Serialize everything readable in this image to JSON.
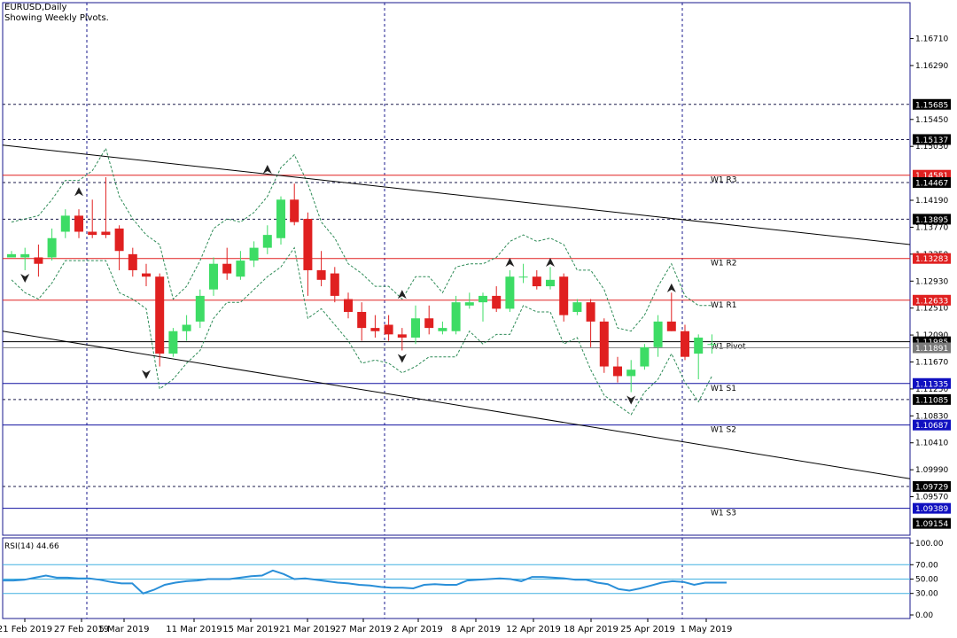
{
  "header": {
    "symbol": "EURUSD,Daily",
    "subtitle": "Showing Weekly Pivots."
  },
  "rsi_label": "RSI(14) 44.66",
  "colors": {
    "bull": "#3ddc65",
    "bear": "#e02020",
    "frame": "#1a1a8c",
    "pivot_red": "#e02020",
    "pivot_blue": "#1010a0",
    "rsi_line": "#2a8fd8",
    "rsi_level": "#40b0e0",
    "envelope": "#2e8b57"
  },
  "chart_data": [
    {
      "type": "candlestick",
      "title": "EURUSD,Daily",
      "ylim": [
        1.0897,
        1.1727
      ],
      "y_ticks": [
        "1.16710",
        "1.16290",
        "1.15450",
        "1.15030",
        "1.14190",
        "1.13770",
        "1.13350",
        "1.12930",
        "1.12510",
        "1.12090",
        "1.11670",
        "1.11250",
        "1.10830",
        "1.10410",
        "1.09990",
        "1.09570"
      ],
      "x_tick_labels": [
        "21 Feb 2019",
        "27 Feb 2019",
        "5 Mar 2019",
        "11 Mar 2019",
        "15 Mar 2019",
        "21 Mar 2019",
        "27 Mar 2019",
        "2 Apr 2019",
        "8 Apr 2019",
        "12 Apr 2019",
        "18 Apr 2019",
        "25 Apr 2019",
        "1 May 2019"
      ],
      "candles": [
        [
          1.133,
          1.134,
          1.133,
          1.1335
        ],
        [
          1.133,
          1.1345,
          1.131,
          1.1335
        ],
        [
          1.133,
          1.135,
          1.13,
          1.132
        ],
        [
          1.133,
          1.1375,
          1.1325,
          1.136
        ],
        [
          1.137,
          1.1405,
          1.136,
          1.1395
        ],
        [
          1.1395,
          1.1405,
          1.136,
          1.137
        ],
        [
          1.137,
          1.142,
          1.136,
          1.1365
        ],
        [
          1.137,
          1.1455,
          1.136,
          1.1365
        ],
        [
          1.1375,
          1.138,
          1.131,
          1.134
        ],
        [
          1.1335,
          1.1345,
          1.13,
          1.131
        ],
        [
          1.1305,
          1.132,
          1.1285,
          1.13
        ],
        [
          1.13,
          1.1305,
          1.116,
          1.118
        ],
        [
          1.118,
          1.122,
          1.1175,
          1.1215
        ],
        [
          1.1215,
          1.124,
          1.12,
          1.1225
        ],
        [
          1.123,
          1.128,
          1.122,
          1.127
        ],
        [
          1.128,
          1.133,
          1.127,
          1.132
        ],
        [
          1.132,
          1.1345,
          1.1295,
          1.1305
        ],
        [
          1.13,
          1.134,
          1.1295,
          1.1325
        ],
        [
          1.1325,
          1.1355,
          1.1315,
          1.1345
        ],
        [
          1.1345,
          1.138,
          1.1335,
          1.1365
        ],
        [
          1.136,
          1.1425,
          1.135,
          1.142
        ],
        [
          1.142,
          1.1445,
          1.138,
          1.1385
        ],
        [
          1.139,
          1.14,
          1.127,
          1.131
        ],
        [
          1.131,
          1.134,
          1.1285,
          1.1295
        ],
        [
          1.1305,
          1.1315,
          1.126,
          1.127
        ],
        [
          1.1265,
          1.1275,
          1.1235,
          1.1245
        ],
        [
          1.1245,
          1.126,
          1.12,
          1.122
        ],
        [
          1.122,
          1.124,
          1.1205,
          1.1215
        ],
        [
          1.1225,
          1.124,
          1.12,
          1.121
        ],
        [
          1.121,
          1.122,
          1.1185,
          1.1205
        ],
        [
          1.1205,
          1.1255,
          1.1195,
          1.1235
        ],
        [
          1.1235,
          1.1255,
          1.121,
          1.122
        ],
        [
          1.1215,
          1.123,
          1.121,
          1.122
        ],
        [
          1.1215,
          1.127,
          1.121,
          1.126
        ],
        [
          1.1255,
          1.1275,
          1.125,
          1.126
        ],
        [
          1.126,
          1.1275,
          1.123,
          1.127
        ],
        [
          1.127,
          1.1285,
          1.1245,
          1.125
        ],
        [
          1.125,
          1.131,
          1.1245,
          1.13
        ],
        [
          1.13,
          1.132,
          1.129,
          1.13
        ],
        [
          1.13,
          1.131,
          1.128,
          1.1285
        ],
        [
          1.1285,
          1.1315,
          1.128,
          1.1295
        ],
        [
          1.13,
          1.1305,
          1.123,
          1.124
        ],
        [
          1.1245,
          1.1265,
          1.124,
          1.126
        ],
        [
          1.126,
          1.1265,
          1.119,
          1.123
        ],
        [
          1.123,
          1.1235,
          1.115,
          1.116
        ],
        [
          1.116,
          1.1175,
          1.1135,
          1.1145
        ],
        [
          1.1145,
          1.117,
          1.112,
          1.1155
        ],
        [
          1.116,
          1.1195,
          1.1155,
          1.119
        ],
        [
          1.119,
          1.124,
          1.1175,
          1.123
        ],
        [
          1.123,
          1.1275,
          1.1215,
          1.1215
        ],
        [
          1.1215,
          1.1225,
          1.117,
          1.1175
        ],
        [
          1.118,
          1.121,
          1.114,
          1.1205
        ],
        [
          1.1195,
          1.121,
          1.118,
          1.1195
        ]
      ],
      "pivot_levels": [
        {
          "name": "W1 R3",
          "value": 1.14581,
          "color": "red"
        },
        {
          "name": "W1 R2",
          "value": 1.13283,
          "color": "red"
        },
        {
          "name": "W1 R1",
          "value": 1.12633,
          "color": "red"
        },
        {
          "name": "W1 Pivot",
          "value": 1.11985,
          "color": "black"
        },
        {
          "name": "W1 S1",
          "value": 1.11335,
          "color": "blue"
        },
        {
          "name": "W1 S2",
          "value": 1.10687,
          "color": "blue"
        },
        {
          "name": "W1 S3",
          "value": 1.09389,
          "color": "blue"
        }
      ],
      "dashed_levels": [
        1.15685,
        1.15137,
        1.14467,
        1.13895,
        1.11085,
        1.09729
      ],
      "price_tags": [
        {
          "text": "1.15685",
          "color": "black",
          "value": 1.15685
        },
        {
          "text": "1.15137",
          "color": "black",
          "value": 1.15137
        },
        {
          "text": "1.14581",
          "color": "red",
          "value": 1.14581
        },
        {
          "text": "1.14467",
          "color": "black",
          "value": 1.14467
        },
        {
          "text": "1.13895",
          "color": "black",
          "value": 1.13895
        },
        {
          "text": "1.13283",
          "color": "red",
          "value": 1.13283
        },
        {
          "text": "1.12633",
          "color": "red",
          "value": 1.12633
        },
        {
          "text": "1.11985",
          "color": "black",
          "value": 1.11985
        },
        {
          "text": "1.11891",
          "color": "gray",
          "value": 1.11891
        },
        {
          "text": "1.11335",
          "color": "blue",
          "value": 1.11335
        },
        {
          "text": "1.11085",
          "color": "black",
          "value": 1.11085
        },
        {
          "text": "1.10687",
          "color": "blue",
          "value": 1.10687
        },
        {
          "text": "1.09729",
          "color": "black",
          "value": 1.09729
        },
        {
          "text": "1.09389",
          "color": "blue",
          "value": 1.09389
        },
        {
          "text": "1.09154",
          "color": "black",
          "value": 1.09154
        }
      ],
      "trendlines": [
        {
          "from": [
            0,
            1.1505
          ],
          "to": [
            67,
            1.135
          ]
        },
        {
          "from": [
            0,
            1.1215
          ],
          "to": [
            67,
            1.0985
          ]
        }
      ],
      "fractals_up": [
        [
          5,
          1.142
        ],
        [
          19,
          1.1455
        ],
        [
          37,
          1.131
        ],
        [
          40,
          1.131
        ],
        [
          29,
          1.126
        ],
        [
          49,
          1.127
        ]
      ],
      "fractals_down": [
        [
          1,
          1.131
        ],
        [
          10,
          1.116
        ],
        [
          29,
          1.1185
        ],
        [
          46,
          1.112
        ]
      ]
    },
    {
      "type": "line",
      "title": "RSI(14) 44.66",
      "ylim": [
        0,
        100
      ],
      "y_ticks": [
        "100.00",
        "70.00",
        "50.00",
        "30.00",
        "0.00"
      ],
      "levels": [
        70,
        50,
        30
      ],
      "series": [
        {
          "values": [
            48,
            48,
            49,
            52,
            55,
            52,
            52,
            51,
            51,
            49,
            46,
            44,
            44,
            30,
            35,
            42,
            45,
            47,
            48,
            50,
            50,
            50,
            52,
            54,
            55,
            62,
            57,
            50,
            51,
            49,
            47,
            45,
            44,
            42,
            41,
            39,
            38,
            38,
            37,
            42,
            43,
            42,
            42,
            48,
            49,
            50,
            51,
            50,
            47,
            53,
            53,
            52,
            51,
            49,
            49,
            45,
            43,
            36,
            34,
            37,
            41,
            45,
            47,
            46,
            42,
            45,
            45,
            45
          ]
        }
      ]
    }
  ]
}
